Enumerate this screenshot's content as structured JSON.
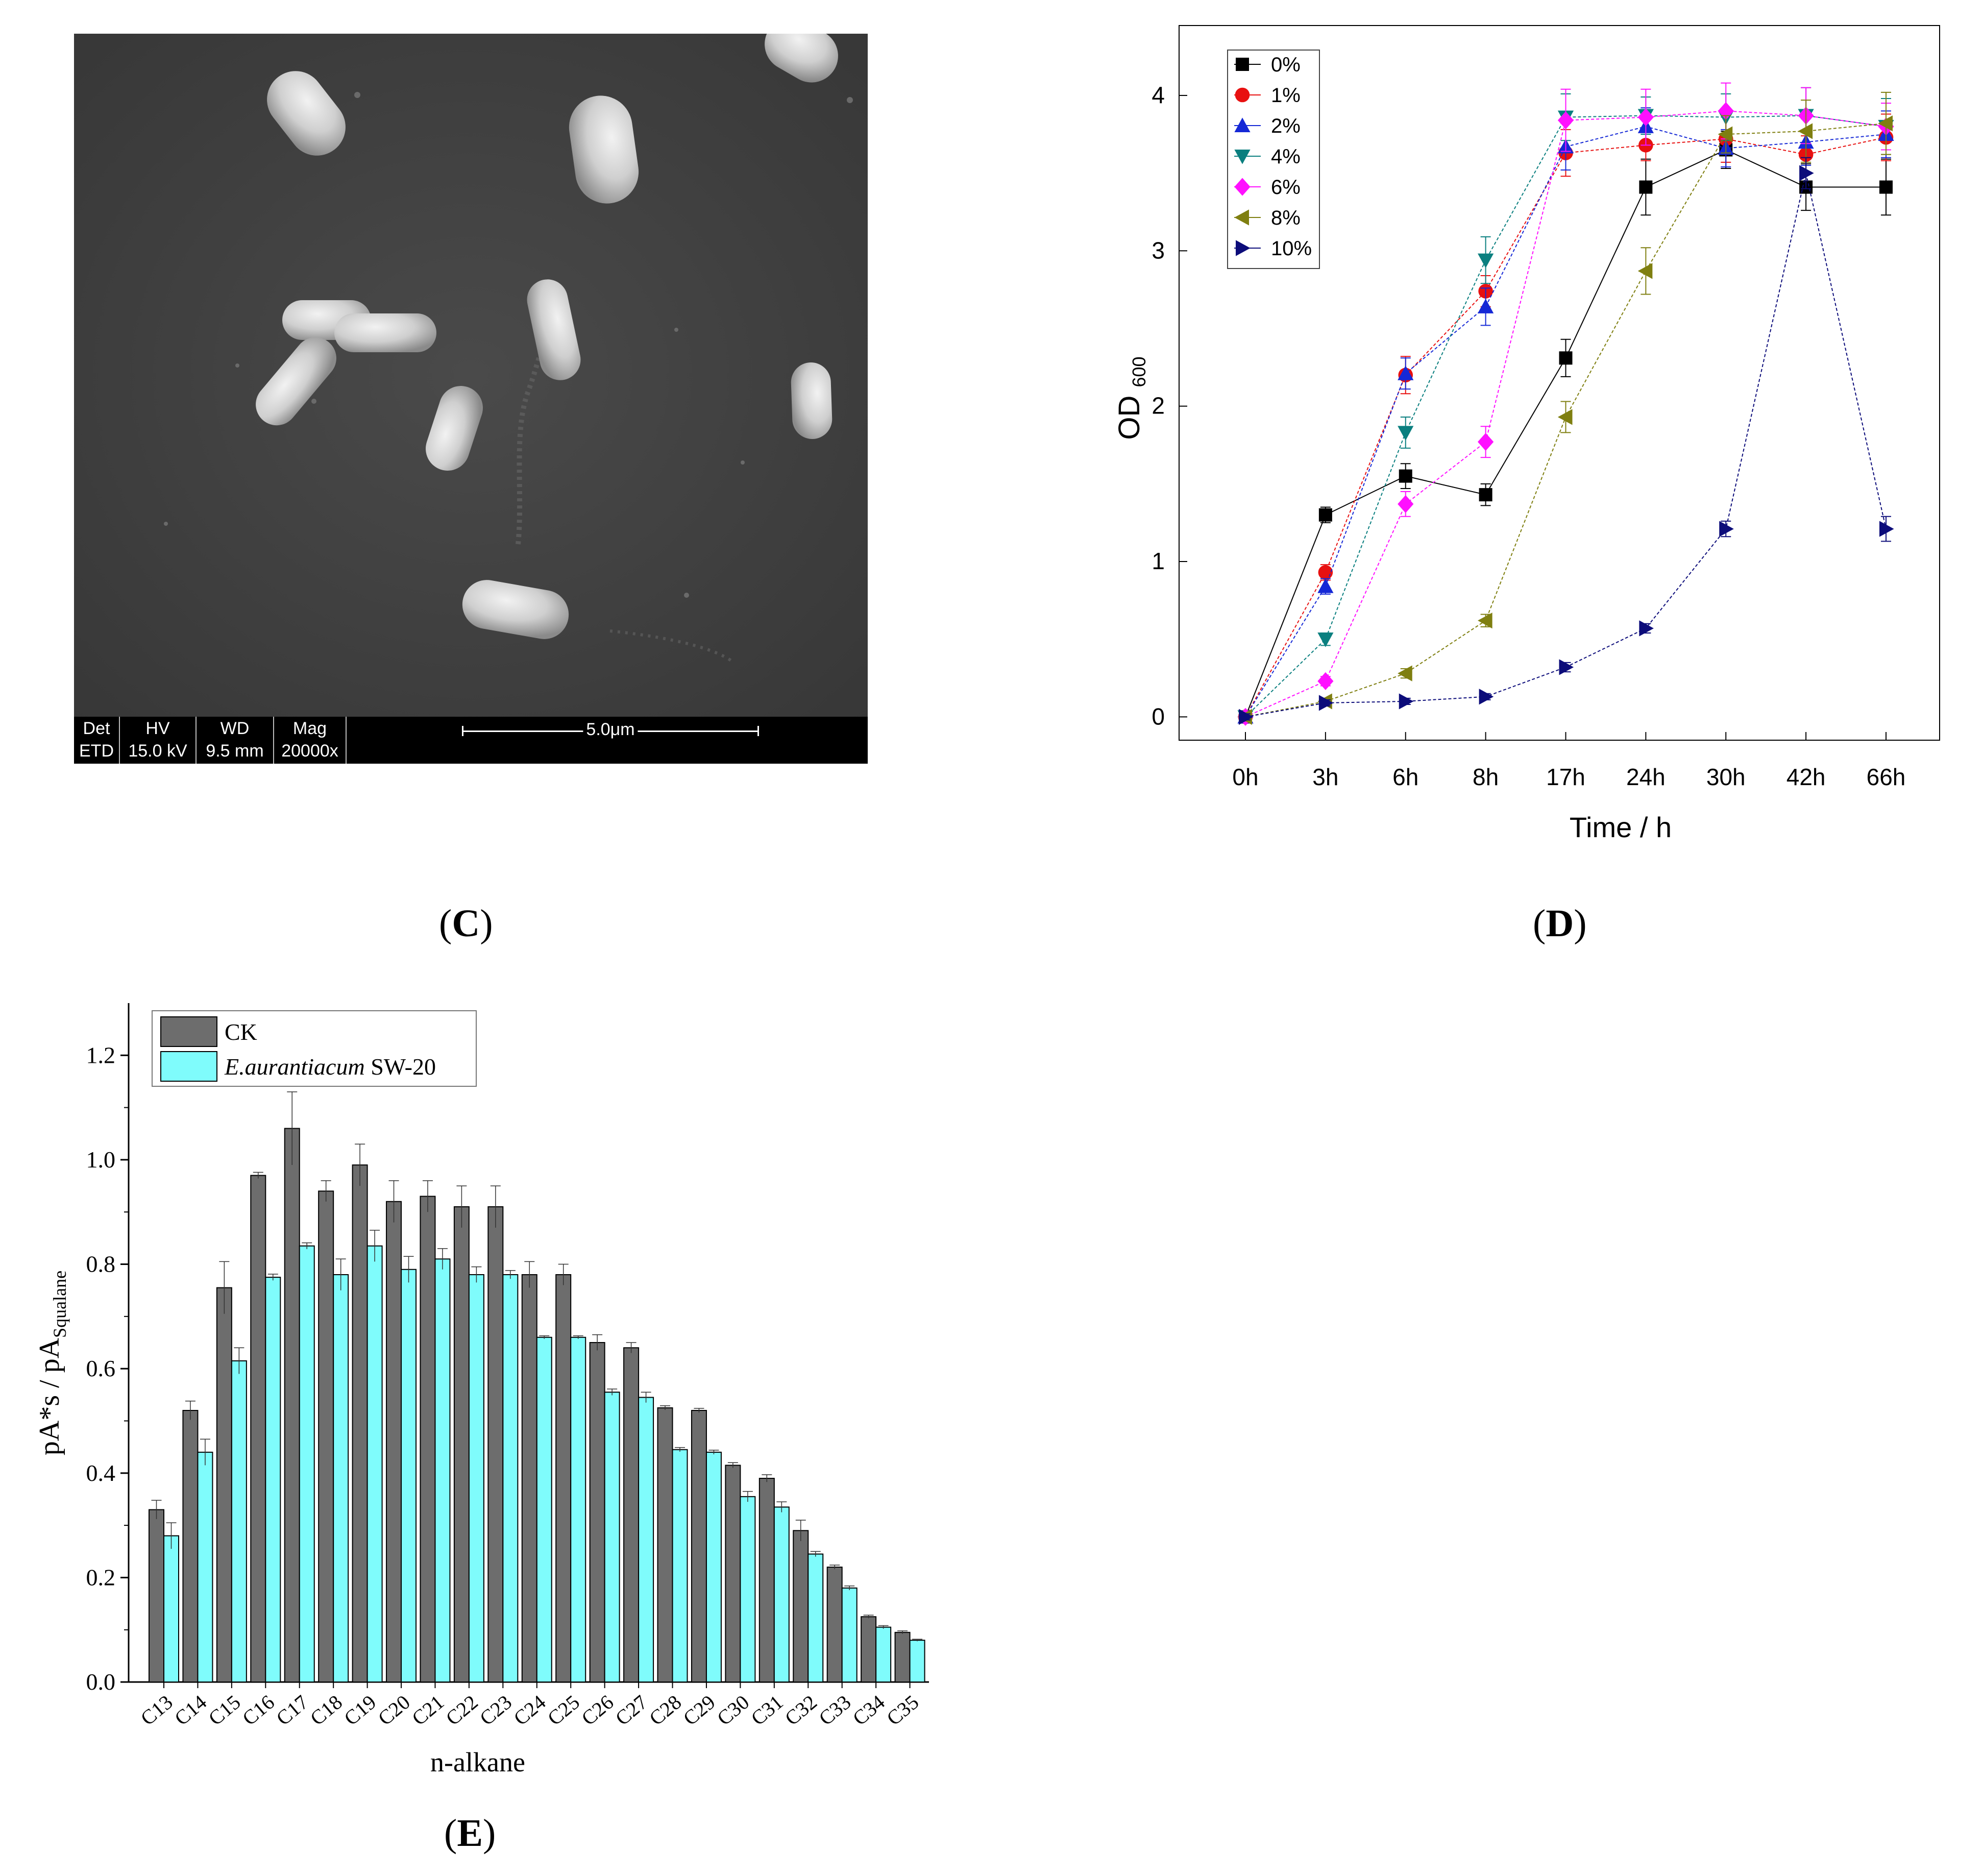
{
  "panel_labels": {
    "c": "C",
    "d": "D",
    "e": "E"
  },
  "sem_info": {
    "headers": [
      "Det",
      "HV",
      "WD",
      "Mag"
    ],
    "values": [
      "ETD",
      "15.0 kV",
      "9.5 mm",
      "20000x"
    ],
    "scale": "5.0μm"
  },
  "chart_data": [
    {
      "id": "D",
      "type": "line",
      "title": "",
      "xlabel": "Time / h",
      "ylabel": "OD",
      "ylabel_sub": "600",
      "categories": [
        "0h",
        "3h",
        "6h",
        "8h",
        "17h",
        "24h",
        "30h",
        "42h",
        "66h"
      ],
      "ylim": [
        -0.15,
        4.45
      ],
      "yticks": [
        0,
        1,
        2,
        3,
        4
      ],
      "legend_position": "top-left",
      "series": [
        {
          "name": "0%",
          "color": "#000000",
          "marker": "square",
          "values": [
            0,
            1.3,
            1.55,
            1.43,
            2.31,
            3.41,
            3.65,
            3.41,
            3.41
          ],
          "errors": [
            0.02,
            0.05,
            0.08,
            0.07,
            0.12,
            0.18,
            0.12,
            0.15,
            0.18
          ]
        },
        {
          "name": "1%",
          "color": "#e81010",
          "marker": "circle",
          "values": [
            0,
            0.93,
            2.2,
            2.74,
            3.63,
            3.68,
            3.72,
            3.62,
            3.73
          ],
          "errors": [
            0.02,
            0.05,
            0.12,
            0.1,
            0.15,
            0.1,
            0.15,
            0.12,
            0.15
          ]
        },
        {
          "name": "2%",
          "color": "#1528d6",
          "marker": "triangle-up",
          "values": [
            0,
            0.84,
            2.21,
            2.64,
            3.67,
            3.8,
            3.66,
            3.7,
            3.75
          ],
          "errors": [
            0.02,
            0.05,
            0.1,
            0.12,
            0.15,
            0.12,
            0.12,
            0.15,
            0.15
          ]
        },
        {
          "name": "4%",
          "color": "#0a7f7f",
          "marker": "triangle-down",
          "values": [
            0,
            0.5,
            1.83,
            2.94,
            3.86,
            3.87,
            3.86,
            3.87,
            3.8
          ],
          "errors": [
            0.02,
            0.04,
            0.1,
            0.15,
            0.15,
            0.12,
            0.15,
            0.18,
            0.18
          ]
        },
        {
          "name": "6%",
          "color": "#ff10ff",
          "marker": "diamond",
          "values": [
            0,
            0.23,
            1.37,
            1.77,
            3.84,
            3.86,
            3.9,
            3.87,
            3.8
          ],
          "errors": [
            0.02,
            0.03,
            0.08,
            0.1,
            0.2,
            0.18,
            0.18,
            0.18,
            0.15
          ]
        },
        {
          "name": "8%",
          "color": "#7f7f10",
          "marker": "triangle-left",
          "values": [
            0,
            0.1,
            0.28,
            0.62,
            1.93,
            2.87,
            3.75,
            3.77,
            3.82
          ],
          "errors": [
            0.02,
            0.02,
            0.03,
            0.04,
            0.1,
            0.15,
            0.12,
            0.2,
            0.2
          ]
        },
        {
          "name": "10%",
          "color": "#0c0c7a",
          "marker": "triangle-right",
          "values": [
            0,
            0.09,
            0.1,
            0.13,
            0.32,
            0.57,
            1.21,
            3.5,
            1.21
          ],
          "errors": [
            0.02,
            0.02,
            0.02,
            0.02,
            0.03,
            0.03,
            0.05,
            0.1,
            0.08
          ]
        }
      ]
    },
    {
      "id": "E",
      "type": "bar",
      "title": "",
      "xlabel": "n-alkane",
      "ylabel": "pA*s / pA",
      "ylabel_sub": "Squalane",
      "categories": [
        "C13",
        "C14",
        "C15",
        "C16",
        "C17",
        "C18",
        "C19",
        "C20",
        "C21",
        "C22",
        "C23",
        "C24",
        "C25",
        "C26",
        "C27",
        "C28",
        "C29",
        "C30",
        "C31",
        "C32",
        "C33",
        "C34",
        "C35"
      ],
      "ylim": [
        0,
        1.3
      ],
      "yticks": [
        0.0,
        0.2,
        0.4,
        0.6,
        0.8,
        1.0,
        1.2
      ],
      "yticklabels": [
        "0.0",
        "0.2",
        "0.4",
        "0.6",
        "0.8",
        "1.0",
        "1.2"
      ],
      "legend_position": "top-left",
      "series": [
        {
          "name": "CK",
          "color": "#6d6d6d",
          "values": [
            0.33,
            0.52,
            0.755,
            0.97,
            1.06,
            0.94,
            0.99,
            0.92,
            0.93,
            0.91,
            0.91,
            0.78,
            0.78,
            0.65,
            0.64,
            0.525,
            0.52,
            0.415,
            0.39,
            0.29,
            0.22,
            0.125,
            0.095
          ],
          "errors": [
            0.018,
            0.018,
            0.05,
            0.006,
            0.07,
            0.02,
            0.04,
            0.04,
            0.03,
            0.04,
            0.04,
            0.025,
            0.02,
            0.015,
            0.01,
            0.004,
            0.004,
            0.005,
            0.007,
            0.02,
            0.004,
            0.003,
            0.003
          ]
        },
        {
          "name": "E.aurantiacum SW-20",
          "name_italic": "E.aurantiacum",
          "name_rest": " SW-20",
          "color": "#7ffcfc",
          "values": [
            0.28,
            0.44,
            0.615,
            0.775,
            0.835,
            0.78,
            0.835,
            0.79,
            0.81,
            0.78,
            0.78,
            0.66,
            0.66,
            0.555,
            0.545,
            0.445,
            0.44,
            0.355,
            0.335,
            0.245,
            0.18,
            0.105,
            0.08
          ],
          "errors": [
            0.025,
            0.025,
            0.025,
            0.006,
            0.006,
            0.03,
            0.03,
            0.025,
            0.02,
            0.015,
            0.008,
            0.003,
            0.003,
            0.006,
            0.01,
            0.004,
            0.004,
            0.01,
            0.01,
            0.005,
            0.004,
            0.003,
            0.002
          ]
        }
      ]
    }
  ]
}
